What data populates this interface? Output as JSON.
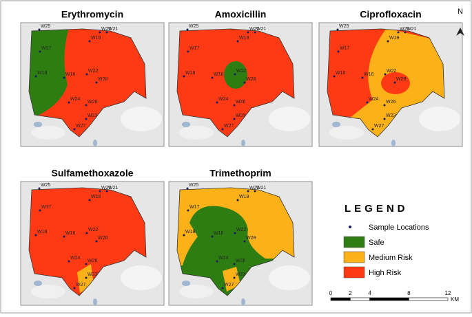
{
  "panels": [
    {
      "title": "Erythromycin"
    },
    {
      "title": "Amoxicillin"
    },
    {
      "title": "Ciprofloxacin"
    },
    {
      "title": "Sulfamethoxazole"
    },
    {
      "title": "Trimethoprim"
    }
  ],
  "sample_locations": [
    "W25",
    "W20",
    "W21",
    "W19",
    "W17",
    "W18",
    "W16",
    "W22",
    "W28",
    "W24",
    "W26",
    "W23",
    "W27"
  ],
  "legend": {
    "title": "LEGEND",
    "items": [
      "Sample Locations",
      "Safe",
      "Medium Risk",
      "High Risk"
    ]
  },
  "scale_bar": {
    "ticks": [
      0,
      2,
      4,
      8,
      12
    ],
    "unit": "KM"
  },
  "north": "N"
}
